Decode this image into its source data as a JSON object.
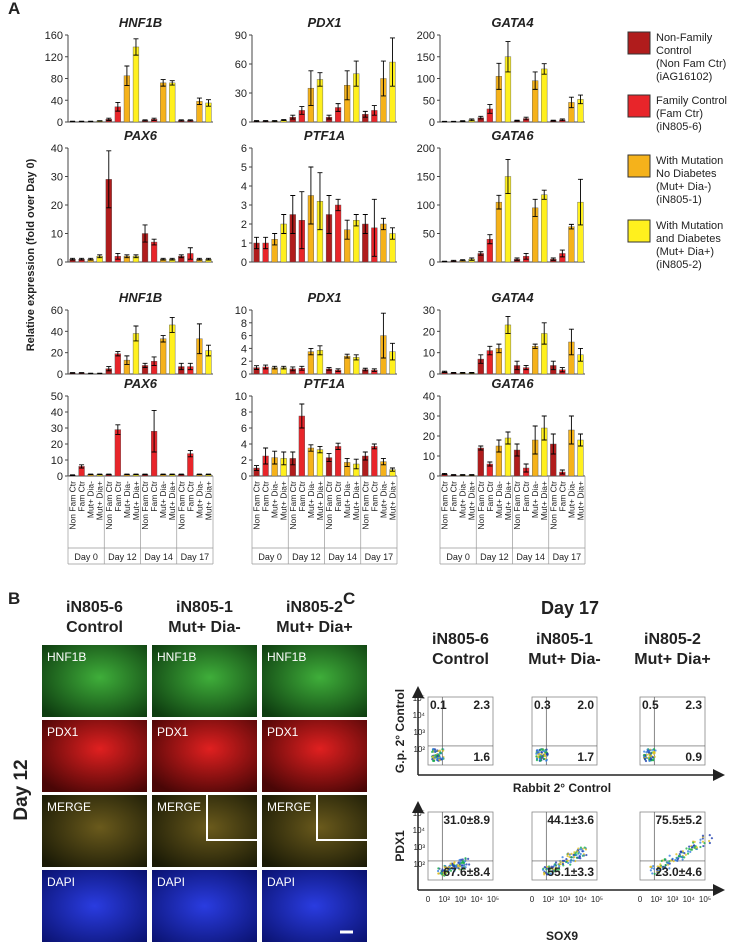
{
  "panel_labels": [
    "A",
    "B",
    "C"
  ],
  "shared": {
    "y_label": "Relative expression (fold over Day 0)",
    "bar_labels": [
      "Non Fam Ctr",
      "Fam Ctr",
      "Mut+ Dia-",
      "Mut+ Dia+"
    ],
    "days": [
      "Day 0",
      "Day 12",
      "Day 14",
      "Day 17"
    ],
    "colors": [
      "#b01c1c",
      "#e8252a",
      "#f5b21b",
      "#fff01e"
    ]
  },
  "legend": [
    {
      "lines": [
        "Non-Family",
        "Control",
        "(Non Fam Ctr)",
        "(iAG16102)"
      ]
    },
    {
      "lines": [
        "Family Control",
        "(Fam Ctr)",
        "(iN805-6)"
      ]
    },
    {
      "lines": [
        "With Mutation",
        "No Diabetes",
        "(Mut+ Dia-)",
        "(iN805-1)"
      ]
    },
    {
      "lines": [
        "With Mutation",
        "and Diabetes",
        "(Mut+ Dia+)",
        "(iN805-2)"
      ]
    }
  ],
  "chart_data": [
    {
      "type": "bar",
      "title": "HNF1B",
      "ylim": [
        0,
        160
      ],
      "yticks": [
        0,
        40,
        80,
        120,
        160
      ],
      "values": [
        1,
        1,
        1,
        2,
        5,
        28,
        85,
        138,
        3,
        5,
        72,
        72,
        3,
        3,
        38,
        35
      ],
      "errors": [
        0.5,
        0.5,
        0.5,
        0.5,
        2,
        8,
        18,
        15,
        1,
        2,
        6,
        4,
        1,
        1,
        6,
        6
      ]
    },
    {
      "type": "bar",
      "title": "PDX1",
      "ylim": [
        0,
        90
      ],
      "yticks": [
        0,
        30,
        60,
        90
      ],
      "values": [
        1,
        1,
        1,
        2,
        5,
        12,
        35,
        44,
        5,
        15,
        38,
        50,
        8,
        12,
        45,
        62
      ],
      "errors": [
        0.5,
        0.5,
        0.5,
        0.5,
        2,
        4,
        18,
        7,
        2,
        4,
        15,
        13,
        3,
        5,
        18,
        25
      ]
    },
    {
      "type": "bar",
      "title": "GATA4",
      "ylim": [
        0,
        200
      ],
      "yticks": [
        0,
        50,
        100,
        150,
        200
      ],
      "values": [
        1,
        1,
        2,
        5,
        10,
        30,
        105,
        150,
        3,
        8,
        95,
        122,
        3,
        5,
        45,
        52
      ],
      "errors": [
        0.5,
        0.5,
        1,
        2,
        3,
        10,
        30,
        35,
        1,
        3,
        20,
        12,
        1,
        2,
        12,
        10
      ]
    },
    {
      "type": "bar",
      "title": "PAX6",
      "ylim": [
        0,
        40
      ],
      "yticks": [
        0,
        10,
        20,
        30,
        40
      ],
      "values": [
        1,
        1,
        1,
        2,
        29,
        2,
        2,
        2,
        10,
        7,
        1,
        1,
        2,
        3,
        1,
        1
      ],
      "errors": [
        0.3,
        0.3,
        0.3,
        0.5,
        10,
        1,
        0.5,
        0.5,
        3,
        1,
        0.3,
        0.3,
        0.5,
        2,
        0.3,
        0.3
      ]
    },
    {
      "type": "bar",
      "title": "PTF1A",
      "ylim": [
        0,
        6
      ],
      "yticks": [
        0,
        1,
        2,
        3,
        4,
        5,
        6
      ],
      "values": [
        1,
        1,
        1.2,
        2,
        2.5,
        2.2,
        3.5,
        3.2,
        2.5,
        3,
        1.7,
        2.2,
        2,
        1.8,
        2,
        1.5
      ],
      "errors": [
        0.3,
        0.3,
        0.3,
        0.5,
        1,
        1.5,
        1.5,
        1.5,
        1,
        0.3,
        0.5,
        0.3,
        0.5,
        1.5,
        0.3,
        0.3
      ]
    },
    {
      "type": "bar",
      "title": "GATA6",
      "ylim": [
        0,
        200
      ],
      "yticks": [
        0,
        50,
        100,
        150,
        200
      ],
      "values": [
        1,
        2,
        3,
        5,
        15,
        40,
        105,
        150,
        5,
        10,
        95,
        118,
        5,
        15,
        62,
        105
      ],
      "errors": [
        0.5,
        1,
        1,
        2,
        3,
        8,
        12,
        30,
        2,
        5,
        15,
        8,
        2,
        6,
        4,
        40
      ]
    },
    {
      "type": "bar",
      "title": "HNF1B",
      "ylim": [
        0,
        60
      ],
      "yticks": [
        0,
        20,
        40,
        60
      ],
      "values": [
        1,
        1,
        0.5,
        0.5,
        5,
        19,
        13,
        38,
        8,
        12,
        33,
        46,
        7,
        7,
        33,
        22
      ],
      "errors": [
        0.3,
        0.3,
        0.2,
        0.2,
        2,
        2,
        4,
        7,
        2,
        4,
        3,
        7,
        3,
        3,
        14,
        5
      ]
    },
    {
      "type": "bar",
      "title": "PDX1",
      "ylim": [
        0,
        10
      ],
      "yticks": [
        0,
        2,
        4,
        6,
        8,
        10
      ],
      "values": [
        1,
        1.1,
        1,
        1,
        0.8,
        0.9,
        3.5,
        3.7,
        0.8,
        0.6,
        2.8,
        2.6,
        0.7,
        0.6,
        6,
        3.5
      ],
      "errors": [
        0.3,
        0.3,
        0.2,
        0.2,
        0.3,
        0.3,
        0.5,
        0.7,
        0.2,
        0.2,
        0.3,
        0.4,
        0.2,
        0.2,
        3.5,
        1.3
      ]
    },
    {
      "type": "bar",
      "title": "GATA4",
      "ylim": [
        0,
        30
      ],
      "yticks": [
        0,
        10,
        20,
        30
      ],
      "values": [
        1,
        0.5,
        0.5,
        0.5,
        7,
        11,
        12,
        23,
        4,
        3,
        13,
        19,
        4,
        2,
        15,
        9
      ],
      "errors": [
        0.3,
        0.2,
        0.2,
        0.2,
        2,
        2,
        2,
        4,
        2,
        1,
        1,
        5,
        2,
        1,
        6,
        3
      ]
    },
    {
      "type": "bar",
      "title": "PAX6",
      "ylim": [
        0,
        50
      ],
      "yticks": [
        0,
        10,
        20,
        30,
        40,
        50
      ],
      "values": [
        0.5,
        6,
        1,
        1,
        1,
        29,
        1,
        1,
        1,
        28,
        1,
        1,
        1,
        14,
        1,
        1
      ],
      "errors": [
        0.2,
        1,
        0.2,
        0.2,
        0.2,
        3,
        0.2,
        0.2,
        0.2,
        13,
        0.2,
        0.2,
        0.2,
        2,
        0.2,
        0.2
      ]
    },
    {
      "type": "bar",
      "title": "PTF1A",
      "ylim": [
        0,
        10
      ],
      "yticks": [
        0,
        2,
        4,
        6,
        8,
        10
      ],
      "values": [
        1,
        2.5,
        2.3,
        2.2,
        2.2,
        7.5,
        3.5,
        3.3,
        2.3,
        3.7,
        1.7,
        1.5,
        2.5,
        3.7,
        1.8,
        0.8
      ],
      "errors": [
        0.3,
        1,
        0.8,
        0.8,
        0.8,
        1.5,
        0.4,
        0.4,
        0.5,
        0.4,
        0.5,
        0.6,
        0.5,
        0.3,
        0.4,
        0.2
      ]
    },
    {
      "type": "bar",
      "title": "GATA6",
      "ylim": [
        0,
        40
      ],
      "yticks": [
        0,
        10,
        20,
        30,
        40
      ],
      "values": [
        1,
        0.5,
        0.5,
        0.5,
        14,
        6,
        15,
        19,
        13,
        4,
        18,
        24,
        16,
        2,
        23,
        18
      ],
      "errors": [
        0.3,
        0.2,
        0.2,
        0.2,
        1,
        1,
        3,
        3,
        3,
        2,
        7,
        6,
        5,
        1,
        7,
        3
      ]
    }
  ],
  "panel_b": {
    "columns": [
      [
        "iN805-6",
        "Control"
      ],
      [
        "iN805-1",
        "Mut+ Dia-"
      ],
      [
        "iN805-2",
        "Mut+ Dia+"
      ]
    ],
    "row_label": "Day 12",
    "channels": [
      "HNF1B",
      "PDX1",
      "MERGE",
      "DAPI"
    ]
  },
  "panel_c": {
    "title": "Day 17",
    "columns": [
      [
        "iN805-6",
        "Control"
      ],
      [
        "iN805-1",
        "Mut+ Dia-"
      ],
      [
        "iN805-2",
        "Mut+ Dia+"
      ]
    ],
    "top_y_label": "G.p. 2° Control",
    "top_x_label": "Rabbit 2° Control",
    "bottom_y_label": "PDX1",
    "bottom_x_label": "SOX9",
    "ticks": [
      "0",
      "10²",
      "10³",
      "10⁴",
      "10⁵"
    ],
    "top": [
      [
        "0.1",
        "2.3",
        "1.6"
      ],
      [
        "0.3",
        "2.0",
        "1.7"
      ],
      [
        "0.5",
        "2.3",
        "0.9"
      ]
    ],
    "bottom": [
      [
        "31.0±8.9",
        "67.6±8.4"
      ],
      [
        "44.1±3.6",
        "55.1±3.3"
      ],
      [
        "75.5±5.2",
        "23.0±4.6"
      ]
    ]
  }
}
